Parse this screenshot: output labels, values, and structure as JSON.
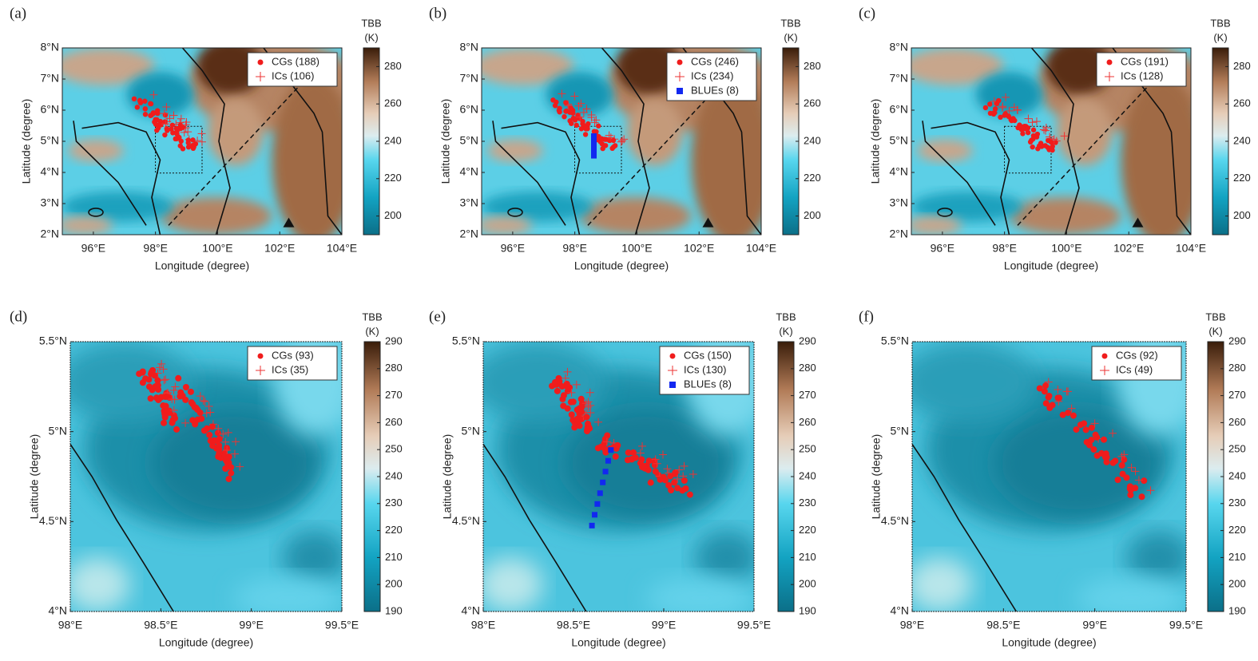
{
  "figure": {
    "panels": [
      {
        "label": "(a)",
        "xlabel": "Longitude (degree)",
        "ylabel": "Latitude (degree)",
        "xlim": [
          95,
          104
        ],
        "ylim": [
          2,
          8
        ],
        "xticks": [
          {
            "value": 96,
            "label": "96°E"
          },
          {
            "value": 98,
            "label": "98°E"
          },
          {
            "value": 100,
            "label": "100°E"
          },
          {
            "value": 102,
            "label": "102°E"
          },
          {
            "value": 104,
            "label": "104°E"
          }
        ],
        "yticks": [
          {
            "value": 2,
            "label": "2°N"
          },
          {
            "value": 3,
            "label": "3°N"
          },
          {
            "value": 4,
            "label": "4°N"
          },
          {
            "value": 5,
            "label": "5°N"
          },
          {
            "value": 6,
            "label": "6°N"
          },
          {
            "value": 7,
            "label": "7°N"
          },
          {
            "value": 8,
            "label": "8°N"
          }
        ],
        "legend": [
          {
            "label": "CGs (188)",
            "marker": "dot"
          },
          {
            "label": "ICs (106)",
            "marker": "plus"
          }
        ],
        "colorbar": {
          "title": "TBB",
          "unit": "(K)",
          "lim": [
            190,
            290
          ],
          "ticks": [
            200,
            220,
            240,
            260,
            280
          ]
        }
      },
      {
        "label": "(b)",
        "xlabel": "Longitude (degree)",
        "ylabel": "Latitude (degree)",
        "xlim": [
          95,
          104
        ],
        "ylim": [
          2,
          8
        ],
        "xticks": [
          {
            "value": 96,
            "label": "96°E"
          },
          {
            "value": 98,
            "label": "98°E"
          },
          {
            "value": 100,
            "label": "100°E"
          },
          {
            "value": 102,
            "label": "102°E"
          },
          {
            "value": 104,
            "label": "104°E"
          }
        ],
        "yticks": [
          {
            "value": 2,
            "label": "2°N"
          },
          {
            "value": 3,
            "label": "3°N"
          },
          {
            "value": 4,
            "label": "4°N"
          },
          {
            "value": 5,
            "label": "5°N"
          },
          {
            "value": 6,
            "label": "6°N"
          },
          {
            "value": 7,
            "label": "7°N"
          },
          {
            "value": 8,
            "label": "8°N"
          }
        ],
        "legend": [
          {
            "label": "CGs (246)",
            "marker": "dot"
          },
          {
            "label": "ICs (234)",
            "marker": "plus"
          },
          {
            "label": "BLUEs (8)",
            "marker": "square"
          }
        ],
        "colorbar": {
          "title": "TBB",
          "unit": "(K)",
          "lim": [
            190,
            290
          ],
          "ticks": [
            200,
            220,
            240,
            260,
            280
          ]
        }
      },
      {
        "label": "(c)",
        "xlabel": "Longitude (degree)",
        "ylabel": "Latitude (degree)",
        "xlim": [
          95,
          104
        ],
        "ylim": [
          2,
          8
        ],
        "xticks": [
          {
            "value": 96,
            "label": "96°E"
          },
          {
            "value": 98,
            "label": "98°E"
          },
          {
            "value": 100,
            "label": "100°E"
          },
          {
            "value": 102,
            "label": "102°E"
          },
          {
            "value": 104,
            "label": "104°E"
          }
        ],
        "yticks": [
          {
            "value": 2,
            "label": "2°N"
          },
          {
            "value": 3,
            "label": "3°N"
          },
          {
            "value": 4,
            "label": "4°N"
          },
          {
            "value": 5,
            "label": "5°N"
          },
          {
            "value": 6,
            "label": "6°N"
          },
          {
            "value": 7,
            "label": "7°N"
          },
          {
            "value": 8,
            "label": "8°N"
          }
        ],
        "legend": [
          {
            "label": "CGs (191)",
            "marker": "dot"
          },
          {
            "label": "ICs (128)",
            "marker": "plus"
          }
        ],
        "colorbar": {
          "title": "TBB",
          "unit": "(K)",
          "lim": [
            190,
            290
          ],
          "ticks": [
            200,
            220,
            240,
            260,
            280
          ]
        }
      },
      {
        "label": "(d)",
        "xlabel": "Longitude (degree)",
        "ylabel": "Latitude (degree)",
        "xlim": [
          98,
          99.5
        ],
        "ylim": [
          4,
          5.5
        ],
        "xticks": [
          {
            "value": 98,
            "label": "98°E"
          },
          {
            "value": 98.5,
            "label": "98.5°E"
          },
          {
            "value": 99,
            "label": "99°E"
          },
          {
            "value": 99.5,
            "label": "99.5°E"
          }
        ],
        "yticks": [
          {
            "value": 4,
            "label": "4°N"
          },
          {
            "value": 4.5,
            "label": "4.5°N"
          },
          {
            "value": 5,
            "label": "5°N"
          },
          {
            "value": 5.5,
            "label": "5.5°N"
          }
        ],
        "legend": [
          {
            "label": "CGs (93)",
            "marker": "dot"
          },
          {
            "label": "ICs (35)",
            "marker": "plus"
          }
        ],
        "colorbar": {
          "title": "TBB",
          "unit": "(K)",
          "lim": [
            190,
            290
          ],
          "ticks": [
            190,
            200,
            210,
            220,
            230,
            240,
            250,
            260,
            270,
            280,
            290
          ]
        }
      },
      {
        "label": "(e)",
        "xlabel": "Longitude (degree)",
        "ylabel": "Latitude (degree)",
        "xlim": [
          98,
          99.5
        ],
        "ylim": [
          4,
          5.5
        ],
        "xticks": [
          {
            "value": 98,
            "label": "98°E"
          },
          {
            "value": 98.5,
            "label": "98.5°E"
          },
          {
            "value": 99,
            "label": "99°E"
          },
          {
            "value": 99.5,
            "label": "99.5°E"
          }
        ],
        "yticks": [
          {
            "value": 4,
            "label": "4°N"
          },
          {
            "value": 4.5,
            "label": "4.5°N"
          },
          {
            "value": 5,
            "label": "5°N"
          },
          {
            "value": 5.5,
            "label": "5.5°N"
          }
        ],
        "legend": [
          {
            "label": "CGs (150)",
            "marker": "dot"
          },
          {
            "label": "ICs (130)",
            "marker": "plus"
          },
          {
            "label": "BLUEs (8)",
            "marker": "square"
          }
        ],
        "colorbar": {
          "title": "TBB",
          "unit": "(K)",
          "lim": [
            190,
            290
          ],
          "ticks": [
            190,
            200,
            210,
            220,
            230,
            240,
            250,
            260,
            270,
            280,
            290
          ]
        }
      },
      {
        "label": "(f)",
        "xlabel": "Longitude (degree)",
        "ylabel": "Latitude (degree)",
        "xlim": [
          98,
          99.5
        ],
        "ylim": [
          4,
          5.5
        ],
        "xticks": [
          {
            "value": 98,
            "label": "98°E"
          },
          {
            "value": 98.5,
            "label": "98.5°E"
          },
          {
            "value": 99,
            "label": "99°E"
          },
          {
            "value": 99.5,
            "label": "99.5°E"
          }
        ],
        "yticks": [
          {
            "value": 4,
            "label": "4°N"
          },
          {
            "value": 4.5,
            "label": "4.5°N"
          },
          {
            "value": 5,
            "label": "5°N"
          },
          {
            "value": 5.5,
            "label": "5.5°N"
          }
        ],
        "legend": [
          {
            "label": "CGs (92)",
            "marker": "dot"
          },
          {
            "label": "ICs (49)",
            "marker": "plus"
          }
        ],
        "colorbar": {
          "title": "TBB",
          "unit": "(K)",
          "lim": [
            190,
            290
          ],
          "ticks": [
            190,
            200,
            210,
            220,
            230,
            240,
            250,
            260,
            270,
            280,
            290
          ]
        }
      }
    ]
  }
}
